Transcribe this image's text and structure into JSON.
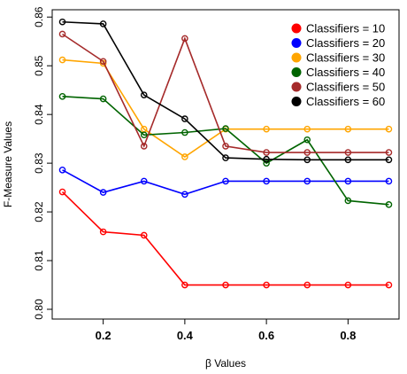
{
  "chart_data": {
    "type": "line",
    "title": "",
    "xlabel": "β Values",
    "ylabel": "F-Measure Values",
    "x": [
      0.1,
      0.2,
      0.3,
      0.4,
      0.5,
      0.6,
      0.7,
      0.8,
      0.9
    ],
    "xlim": [
      0.075,
      0.925
    ],
    "ylim": [
      0.798,
      0.8615
    ],
    "xticks": [
      0.2,
      0.4,
      0.6,
      0.8
    ],
    "xtick_labels": [
      "0.2",
      "0.4",
      "0.6",
      "0.8"
    ],
    "yticks": [
      0.8,
      0.81,
      0.82,
      0.83,
      0.84,
      0.85,
      0.86
    ],
    "ytick_labels": [
      "0.80",
      "0.81",
      "0.82",
      "0.83",
      "0.84",
      "0.85",
      "0.86"
    ],
    "grid": false,
    "legend_position": "top-right",
    "series": [
      {
        "name": "Classifiers = 10",
        "color": "#ff0000",
        "values": [
          0.8241,
          0.8159,
          0.8152,
          0.805,
          0.805,
          0.805,
          0.805,
          0.805,
          0.805
        ]
      },
      {
        "name": "Classifiers = 20",
        "color": "#0000ff",
        "values": [
          0.8286,
          0.824,
          0.8263,
          0.8236,
          0.8263,
          0.8263,
          0.8263,
          0.8263,
          0.8263
        ]
      },
      {
        "name": "Classifiers = 30",
        "color": "#ffa500",
        "values": [
          0.8512,
          0.8505,
          0.837,
          0.8313,
          0.837,
          0.837,
          0.837,
          0.837,
          0.837
        ]
      },
      {
        "name": "Classifiers = 40",
        "color": "#006400",
        "values": [
          0.8437,
          0.8432,
          0.8358,
          0.8363,
          0.8371,
          0.83,
          0.8348,
          0.8223,
          0.8215
        ]
      },
      {
        "name": "Classifiers = 50",
        "color": "#a52a2a",
        "values": [
          0.8565,
          0.8509,
          0.8335,
          0.8556,
          0.8335,
          0.8322,
          0.8322,
          0.8322,
          0.8322
        ]
      },
      {
        "name": "Classifiers = 60",
        "color": "#000000",
        "values": [
          0.859,
          0.8586,
          0.844,
          0.8391,
          0.8311,
          0.8308,
          0.8307,
          0.8307,
          0.8307
        ]
      }
    ]
  }
}
